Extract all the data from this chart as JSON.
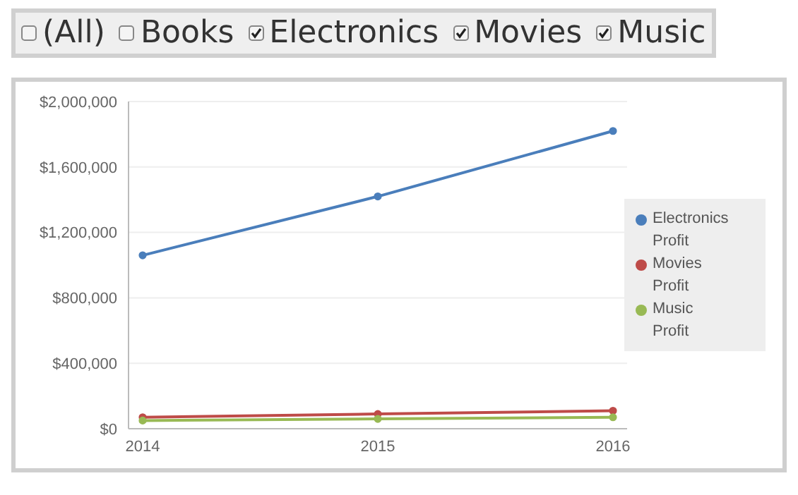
{
  "chart_data": {
    "type": "line",
    "categories": [
      "2014",
      "2015",
      "2016"
    ],
    "series": [
      {
        "name": "Electronics Profit",
        "color": "#4a7ebb",
        "values": [
          1060000,
          1420000,
          1820000
        ]
      },
      {
        "name": "Movies Profit",
        "color": "#be4b48",
        "values": [
          70000,
          90000,
          110000
        ]
      },
      {
        "name": "Music Profit",
        "color": "#98b954",
        "values": [
          50000,
          60000,
          70000
        ]
      }
    ],
    "ylim": [
      0,
      2000000
    ],
    "yticks": [
      {
        "value": 0,
        "label": "$0"
      },
      {
        "value": 400000,
        "label": "$400,000"
      },
      {
        "value": 800000,
        "label": "$800,000"
      },
      {
        "value": 1200000,
        "label": "$1,200,000"
      },
      {
        "value": 1600000,
        "label": "$1,600,000"
      },
      {
        "value": 2000000,
        "label": "$2,000,000"
      }
    ],
    "grid": "y",
    "legend": "right",
    "marker": "circle",
    "line_style": "solid",
    "annotations": [
      "(All)",
      "Books",
      "Electronics",
      "Movies",
      "Music"
    ]
  }
}
